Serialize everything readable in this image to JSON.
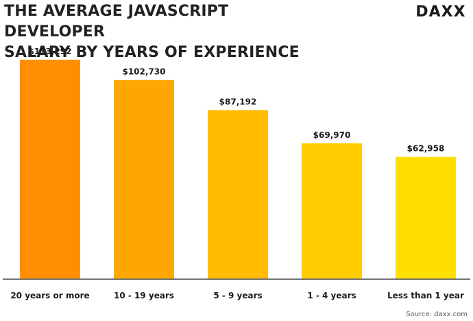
{
  "header": {
    "title_line1": "THE AVERAGE JAVASCRIPT DEVELOPER",
    "title_line2": "SALARY BY YEARS OF EXPERIENCE",
    "logo_text": "DAXX"
  },
  "footer": {
    "source": "Source: daxx.com"
  },
  "chart_data": {
    "type": "bar",
    "title": "THE AVERAGE JAVASCRIPT DEVELOPER SALARY BY YEARS OF EXPERIENCE",
    "categories": [
      "20 years or more",
      "10 - 19 years",
      "5 - 9 years",
      "1 - 4 years",
      "Less than 1 year"
    ],
    "values": [
      113292,
      102730,
      87192,
      69970,
      62958
    ],
    "value_labels": [
      "$113,292",
      "$102,730",
      "$87,192",
      "$69,970",
      "$62,958"
    ],
    "bar_colors": [
      "#FF8F00",
      "#FFA600",
      "#FFBC00",
      "#FFCD00",
      "#FFDF00"
    ],
    "xlabel": "",
    "ylabel": "",
    "ylim": [
      0,
      113292
    ],
    "grid": false,
    "legend": "none"
  }
}
